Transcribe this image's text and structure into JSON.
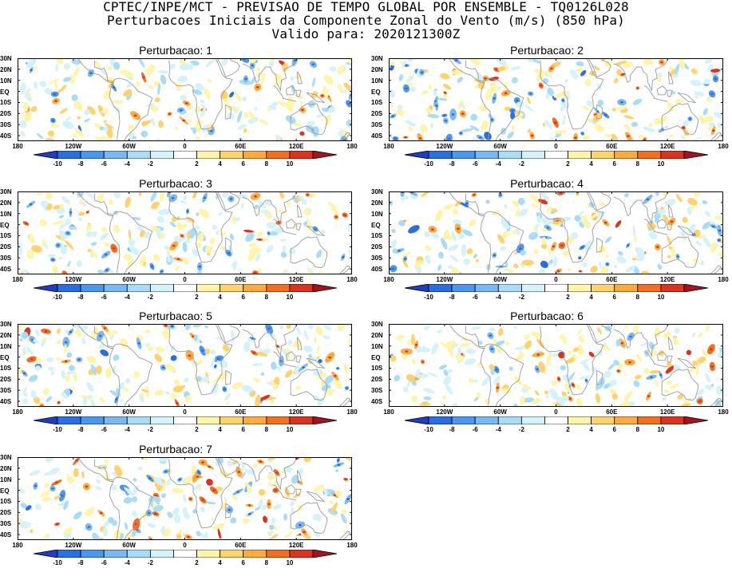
{
  "header": {
    "line1": "CPTEC/INPE/MCT - PREVISAO DE TEMPO GLOBAL POR ENSEMBLE - TQ0126L028",
    "line2": "Perturbacoes Iniciais da Componente Zonal do Vento (m/s) (850 hPa)",
    "line3": "Valido para: 2020121300Z"
  },
  "panels": [
    {
      "title": "Perturbacao: 1"
    },
    {
      "title": "Perturbacao: 2"
    },
    {
      "title": "Perturbacao: 3"
    },
    {
      "title": "Perturbacao: 4"
    },
    {
      "title": "Perturbacao: 5"
    },
    {
      "title": "Perturbacao: 6"
    },
    {
      "title": "Perturbacao: 7"
    }
  ],
  "lat_labels": [
    "30N",
    "20N",
    "10N",
    "EQ",
    "10S",
    "20S",
    "30S",
    "40S"
  ],
  "lon_labels": [
    "180",
    "120W",
    "60W",
    "0",
    "60E",
    "120E",
    "180"
  ],
  "colorbar": {
    "labels": [
      "-10",
      "-8",
      "-6",
      "-4",
      "-2",
      "2",
      "4",
      "6",
      "8",
      "10"
    ],
    "colors": [
      "#1e3cc8",
      "#2a6ee6",
      "#4a96f0",
      "#78b8f4",
      "#a8dcf8",
      "#d4f2fa",
      "#ffffff",
      "#fff4a8",
      "#ffd26e",
      "#ffaa3c",
      "#f56e1e",
      "#dc321e",
      "#a5141e"
    ]
  }
}
